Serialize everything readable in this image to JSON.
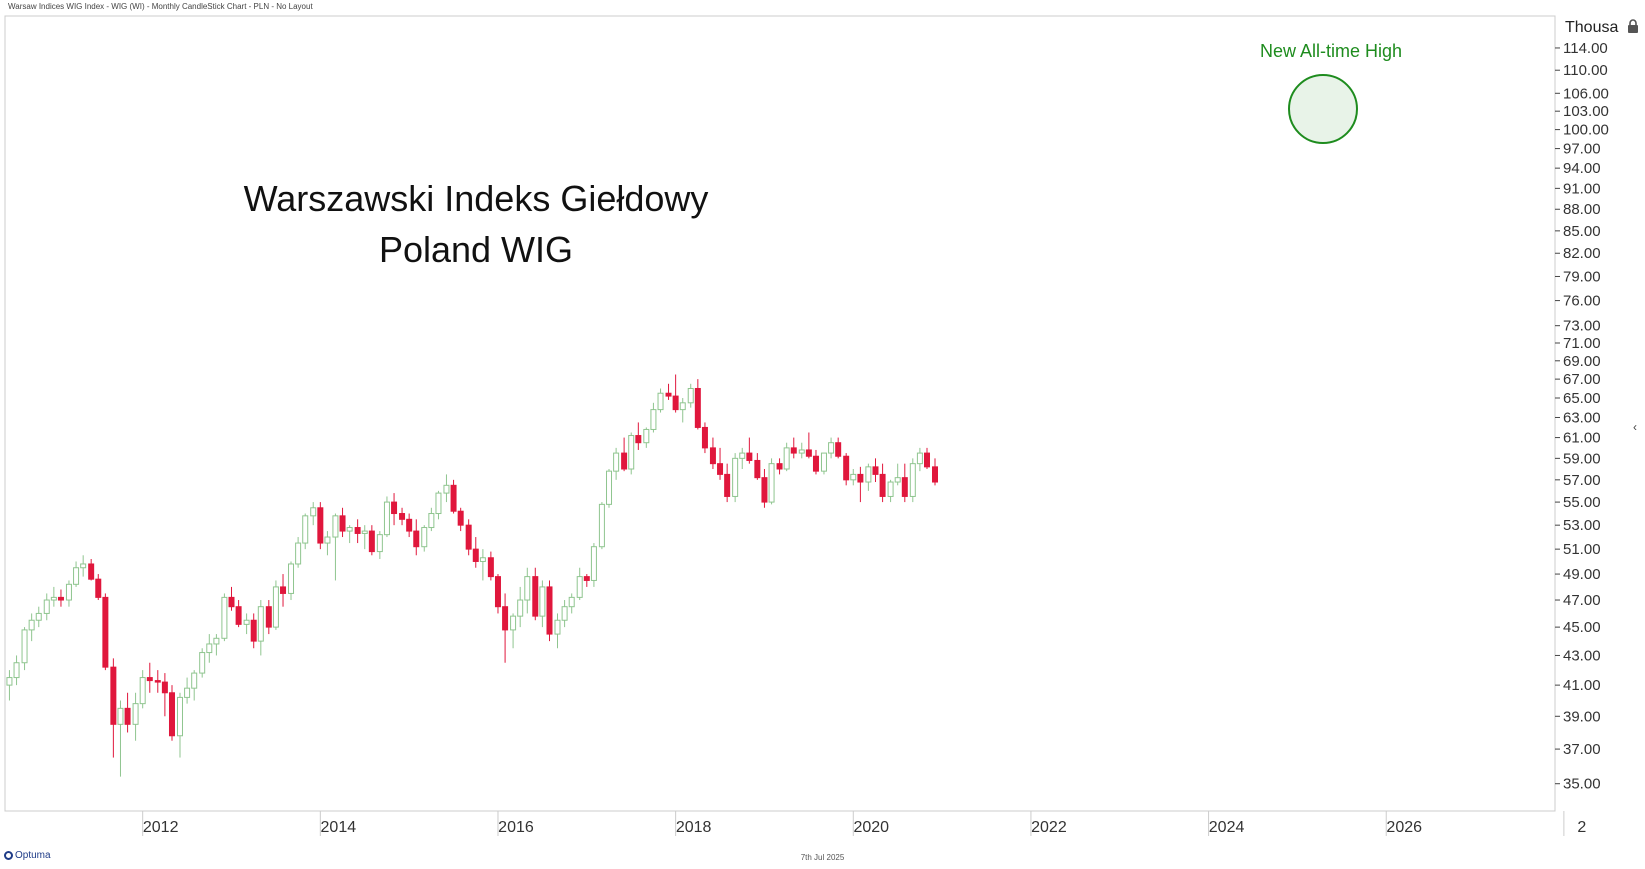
{
  "header": {
    "title": "Warsaw Indices WIG Index - WIG (WI) - Monthly CandleStick Chart - PLN - No Layout"
  },
  "footer": {
    "date": "7th Jul 2025",
    "logo_text": "Optuma"
  },
  "colors": {
    "up": "#8fc58f",
    "down": "#e0173c",
    "annotation": "#1e8c1e",
    "axis": "#cccccc"
  },
  "chart_data": {
    "type": "candlestick",
    "title": "Warszawski Indeks Giełdowy",
    "subtitle": "Poland WIG",
    "unit_label": "Thousa",
    "annotation": "New All-time High",
    "x_tick_labels": [
      "2012",
      "2014",
      "2016",
      "2018",
      "2020",
      "2022",
      "2024",
      "2026",
      "2"
    ],
    "y_tick_labels": [
      "114.00",
      "110.00",
      "106.00",
      "103.00",
      "100.00",
      "97.00",
      "94.00",
      "91.00",
      "88.00",
      "85.00",
      "82.00",
      "79.00",
      "76.00",
      "73.00",
      "71.00",
      "69.00",
      "67.00",
      "65.00",
      "63.00",
      "61.00",
      "59.00",
      "57.00",
      "55.00",
      "53.00",
      "51.00",
      "49.00",
      "47.00",
      "45.00",
      "43.00",
      "41.00",
      "39.00",
      "37.00",
      "35.00"
    ],
    "y_scale": "log",
    "ylim": [
      33.5,
      120
    ],
    "xlim": [
      2010.45,
      2027.9
    ],
    "candles": [
      [
        2010.5,
        41,
        42,
        40,
        41.5
      ],
      [
        2010.58,
        41.5,
        43,
        41,
        42.5
      ],
      [
        2010.67,
        42.5,
        45,
        42,
        44.8
      ],
      [
        2010.75,
        44.8,
        46,
        44,
        45.5
      ],
      [
        2010.83,
        45.5,
        46.5,
        45,
        46
      ],
      [
        2010.92,
        46,
        47.5,
        45.5,
        47
      ],
      [
        2011.0,
        47,
        48,
        46.5,
        47.2
      ],
      [
        2011.08,
        47.2,
        47.8,
        46.5,
        47
      ],
      [
        2011.17,
        47,
        48.5,
        46.5,
        48.2
      ],
      [
        2011.25,
        48.2,
        50,
        48,
        49.5
      ],
      [
        2011.33,
        49.5,
        50.5,
        48.8,
        49.8
      ],
      [
        2011.42,
        49.8,
        50.2,
        48.5,
        48.6
      ],
      [
        2011.5,
        48.6,
        49,
        47,
        47.2
      ],
      [
        2011.58,
        47.2,
        47.5,
        42,
        42.2
      ],
      [
        2011.67,
        42.2,
        42.8,
        36.5,
        38.5
      ],
      [
        2011.75,
        38.5,
        40,
        35.4,
        39.5
      ],
      [
        2011.83,
        39.5,
        40.5,
        38,
        38.5
      ],
      [
        2011.92,
        38.5,
        40.5,
        37.5,
        39.8
      ],
      [
        2012.0,
        39.8,
        42,
        39.5,
        41.5
      ],
      [
        2012.08,
        41.5,
        42.5,
        40.5,
        41.3
      ],
      [
        2012.17,
        41.3,
        42,
        40.5,
        41.2
      ],
      [
        2012.25,
        41.2,
        41.8,
        39,
        40.5
      ],
      [
        2012.33,
        40.5,
        41,
        37.5,
        37.8
      ],
      [
        2012.42,
        37.8,
        40.5,
        36.5,
        40.2
      ],
      [
        2012.5,
        40.2,
        41.5,
        39.8,
        40.8
      ],
      [
        2012.58,
        40.8,
        42,
        40,
        41.8
      ],
      [
        2012.67,
        41.8,
        43.5,
        41.5,
        43.2
      ],
      [
        2012.75,
        43.2,
        44.5,
        42.5,
        43.8
      ],
      [
        2012.83,
        43.8,
        44.5,
        43,
        44.2
      ],
      [
        2012.92,
        44.2,
        47.5,
        44,
        47.2
      ],
      [
        2013.0,
        47.2,
        48,
        46.2,
        46.5
      ],
      [
        2013.08,
        46.5,
        47,
        45,
        45.2
      ],
      [
        2013.17,
        45.2,
        46,
        44.5,
        45.5
      ],
      [
        2013.25,
        45.5,
        46,
        43.5,
        44
      ],
      [
        2013.33,
        44,
        47,
        43,
        46.5
      ],
      [
        2013.42,
        46.5,
        47,
        44.5,
        45
      ],
      [
        2013.5,
        45,
        48.5,
        44.8,
        48
      ],
      [
        2013.58,
        48,
        49,
        46.5,
        47.5
      ],
      [
        2013.67,
        47.5,
        50,
        47,
        49.8
      ],
      [
        2013.75,
        49.8,
        52,
        49.5,
        51.5
      ],
      [
        2013.83,
        51.5,
        54,
        51,
        53.8
      ],
      [
        2013.92,
        53.8,
        55,
        53,
        54.5
      ],
      [
        2014.0,
        54.5,
        55,
        51,
        51.5
      ],
      [
        2014.08,
        51.5,
        52.5,
        50.5,
        52
      ],
      [
        2014.17,
        52,
        54,
        48.5,
        53.8
      ],
      [
        2014.25,
        53.8,
        54.5,
        52,
        52.5
      ],
      [
        2014.33,
        52.5,
        53,
        51.5,
        52.8
      ],
      [
        2014.42,
        52.8,
        53.5,
        51.5,
        52.3
      ],
      [
        2014.5,
        52.3,
        53,
        51,
        52.5
      ],
      [
        2014.58,
        52.5,
        53,
        50.5,
        50.8
      ],
      [
        2014.67,
        50.8,
        52.5,
        50.2,
        52.2
      ],
      [
        2014.75,
        52.2,
        55.5,
        52,
        55
      ],
      [
        2014.83,
        55,
        55.8,
        53,
        54
      ],
      [
        2014.92,
        54,
        54.5,
        53,
        53.5
      ],
      [
        2015.0,
        53.5,
        54,
        52,
        52.5
      ],
      [
        2015.08,
        52.5,
        53.5,
        50.5,
        51.2
      ],
      [
        2015.17,
        51.2,
        53,
        50.8,
        52.8
      ],
      [
        2015.25,
        52.8,
        54.5,
        52.5,
        54
      ],
      [
        2015.33,
        54,
        56,
        53.5,
        55.8
      ],
      [
        2015.42,
        55.8,
        57.5,
        55,
        56.5
      ],
      [
        2015.5,
        56.5,
        57,
        54,
        54.2
      ],
      [
        2015.58,
        54.2,
        54.5,
        52.5,
        53
      ],
      [
        2015.67,
        53,
        53.5,
        50.5,
        51
      ],
      [
        2015.75,
        51,
        52,
        49.5,
        50
      ],
      [
        2015.83,
        50,
        51,
        48.5,
        50.3
      ],
      [
        2015.92,
        50.3,
        50.8,
        48.5,
        48.8
      ],
      [
        2016.0,
        48.8,
        49,
        46,
        46.5
      ],
      [
        2016.08,
        46.5,
        47.5,
        42.5,
        44.8
      ],
      [
        2016.17,
        44.8,
        46,
        43.5,
        45.8
      ],
      [
        2016.25,
        45.8,
        48,
        45,
        47
      ],
      [
        2016.33,
        47,
        49.5,
        46,
        48.8
      ],
      [
        2016.42,
        48.8,
        49.5,
        45.5,
        45.8
      ],
      [
        2016.5,
        45.8,
        48.5,
        45,
        48
      ],
      [
        2016.58,
        48,
        48.5,
        44,
        44.5
      ],
      [
        2016.67,
        44.5,
        46,
        43.5,
        45.5
      ],
      [
        2016.75,
        45.5,
        47,
        45,
        46.5
      ],
      [
        2016.83,
        46.5,
        47.5,
        46,
        47.2
      ],
      [
        2016.92,
        47.2,
        49.5,
        47,
        48.8
      ],
      [
        2017.0,
        48.8,
        49,
        48,
        48.5
      ],
      [
        2017.08,
        48.5,
        51.5,
        48,
        51.2
      ],
      [
        2017.17,
        51.2,
        55,
        51,
        54.8
      ],
      [
        2017.25,
        54.8,
        58,
        54.5,
        57.8
      ],
      [
        2017.33,
        57.8,
        60,
        57,
        59.5
      ],
      [
        2017.42,
        59.5,
        61,
        57.8,
        58
      ],
      [
        2017.5,
        58,
        61.5,
        57.5,
        61.2
      ],
      [
        2017.58,
        61.2,
        62.5,
        59.8,
        60.5
      ],
      [
        2017.67,
        60.5,
        62,
        60,
        61.8
      ],
      [
        2017.75,
        61.8,
        64.5,
        61.5,
        63.8
      ],
      [
        2017.83,
        63.8,
        66,
        63.5,
        65.5
      ],
      [
        2017.92,
        65.5,
        66.5,
        64.8,
        65.2
      ],
      [
        2018.0,
        65.2,
        67.5,
        63.5,
        63.8
      ],
      [
        2018.08,
        63.8,
        65,
        62.5,
        64.5
      ],
      [
        2018.17,
        64.5,
        66.5,
        64,
        66
      ],
      [
        2018.25,
        66,
        67,
        61.8,
        62
      ],
      [
        2018.33,
        62,
        62.5,
        59.5,
        60
      ],
      [
        2018.42,
        60,
        61,
        58,
        58.5
      ],
      [
        2018.5,
        58.5,
        60,
        57,
        57.5
      ],
      [
        2018.58,
        57.5,
        58.5,
        55,
        55.5
      ],
      [
        2018.67,
        55.5,
        59.5,
        55,
        59
      ],
      [
        2018.75,
        59,
        60,
        58,
        59.5
      ],
      [
        2018.83,
        59.5,
        61,
        58.5,
        58.8
      ],
      [
        2018.92,
        58.8,
        59.5,
        57,
        57.2
      ],
      [
        2019.0,
        57.2,
        58,
        54.5,
        55
      ],
      [
        2019.08,
        55,
        59,
        54.8,
        58.5
      ],
      [
        2019.17,
        58.5,
        59,
        57.5,
        58
      ],
      [
        2019.25,
        58,
        60.5,
        57.8,
        60
      ],
      [
        2019.33,
        60,
        61,
        59,
        59.5
      ],
      [
        2019.42,
        59.5,
        60.5,
        59,
        59.8
      ],
      [
        2019.5,
        59.8,
        61.5,
        59,
        59.2
      ],
      [
        2019.58,
        59.2,
        59.8,
        57.5,
        57.8
      ],
      [
        2019.67,
        57.8,
        59.5,
        57.5,
        59.5
      ],
      [
        2019.75,
        59.5,
        61,
        59,
        60.5
      ],
      [
        2019.83,
        60.5,
        61,
        59,
        59.2
      ],
      [
        2019.92,
        59.2,
        59.5,
        56.5,
        57
      ],
      [
        2020.0,
        57,
        58,
        56.5,
        57.5
      ],
      [
        2020.08,
        57.5,
        58.2,
        55,
        56.8
      ],
      [
        2020.17,
        56.8,
        58.5,
        56,
        58.2
      ],
      [
        2020.25,
        58.2,
        59,
        56.8,
        57.5
      ],
      [
        2020.33,
        57.5,
        58.5,
        55,
        55.5
      ],
      [
        2020.42,
        55.5,
        57,
        55,
        56.8
      ],
      [
        2020.5,
        56.8,
        58.5,
        56.5,
        57.2
      ],
      [
        2020.58,
        57.2,
        58.5,
        55,
        55.5
      ],
      [
        2020.67,
        55.5,
        59,
        55,
        58.5
      ],
      [
        2020.75,
        58.5,
        60,
        57.8,
        59.5
      ],
      [
        2020.83,
        59.5,
        60,
        58,
        58.2
      ],
      [
        2020.92,
        58.2,
        59,
        56.5,
        56.8
      ]
    ]
  }
}
